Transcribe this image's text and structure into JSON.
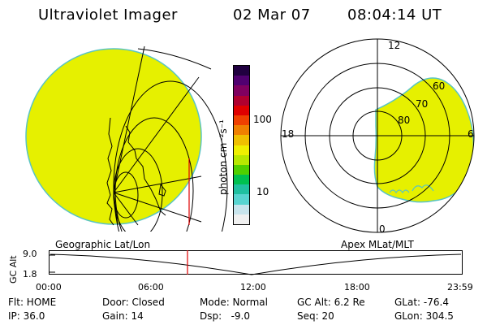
{
  "header": {
    "title": "Ultraviolet Imager",
    "date": "02 Mar 07",
    "time": "08:04:14 UT"
  },
  "left_panel": {
    "caption": "Geographic Lat/Lon",
    "disk_color": "#e6f000",
    "edge_color": "#58c4c4"
  },
  "colorbar": {
    "unit_label": "photon cm⁻²s⁻¹",
    "ticks": [
      "100",
      "10"
    ],
    "scale": "log",
    "colors": [
      "#f0f0f0",
      "#c8e4ec",
      "#58d4d0",
      "#20c0a0",
      "#00c050",
      "#50d000",
      "#b8e800",
      "#f0f000",
      "#f0c000",
      "#f08000",
      "#f04000",
      "#e00000",
      "#b00030",
      "#800060",
      "#500070",
      "#200040"
    ]
  },
  "polar_plot": {
    "caption": "Apex MLat/MLT",
    "mlt_labels": {
      "top": "12",
      "left": "18",
      "right": "6",
      "bottom": "0"
    },
    "lat_labels": [
      "60",
      "70",
      "80"
    ],
    "fill_color": "#e6f000",
    "edge_color": "#58c4c4"
  },
  "altitude_strip": {
    "axis_label": "GC Alt",
    "y_ticks": [
      "9.0",
      "1.8"
    ],
    "time_ticks": [
      "00:00",
      "06:00",
      "12:00",
      "18:00",
      "23:59"
    ],
    "marker_color": "#e00000",
    "marker_time": "08:04:14"
  },
  "footer": {
    "flt": "Flt: HOME",
    "ip": "IP: 36.0",
    "door": "Door: Closed",
    "gain": "Gain: 14",
    "mode": "Mode: Normal",
    "dsp": "Dsp:   -9.0",
    "gcalt": "GC Alt: 6.2 Re",
    "seq": "Seq: 20",
    "glat": "GLat: -76.4",
    "glon": "GLon: 304.5"
  }
}
